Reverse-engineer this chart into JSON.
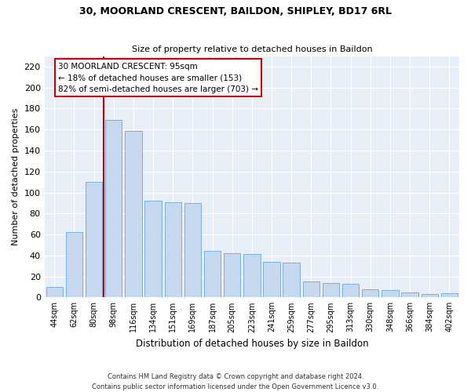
{
  "title1": "30, MOORLAND CRESCENT, BAILDON, SHIPLEY, BD17 6RL",
  "title2": "Size of property relative to detached houses in Baildon",
  "xlabel": "Distribution of detached houses by size in Baildon",
  "ylabel": "Number of detached properties",
  "categories": [
    "44sqm",
    "62sqm",
    "80sqm",
    "98sqm",
    "116sqm",
    "134sqm",
    "151sqm",
    "169sqm",
    "187sqm",
    "205sqm",
    "223sqm",
    "241sqm",
    "259sqm",
    "277sqm",
    "295sqm",
    "313sqm",
    "330sqm",
    "348sqm",
    "366sqm",
    "384sqm",
    "402sqm"
  ],
  "values": [
    10,
    62,
    110,
    169,
    159,
    92,
    91,
    90,
    44,
    42,
    41,
    34,
    33,
    15,
    14,
    13,
    8,
    7,
    5,
    3,
    4
  ],
  "bar_color": "#c5d8ee",
  "bar_edge_color": "#7aafe0",
  "vline_color": "#cc0000",
  "vline_index": 3,
  "annotation_text": "30 MOORLAND CRESCENT: 95sqm\n← 18% of detached houses are smaller (153)\n82% of semi-detached houses are larger (703) →",
  "annotation_box_edgecolor": "#cc0000",
  "ylim": [
    0,
    230
  ],
  "yticks": [
    0,
    20,
    40,
    60,
    80,
    100,
    120,
    140,
    160,
    180,
    200,
    220
  ],
  "footer_line1": "Contains HM Land Registry data © Crown copyright and database right 2024.",
  "footer_line2": "Contains public sector information licensed under the Open Government Licence v3.0.",
  "bg_color": "#e8eef8",
  "title1_fontsize": 9,
  "title2_fontsize": 8
}
